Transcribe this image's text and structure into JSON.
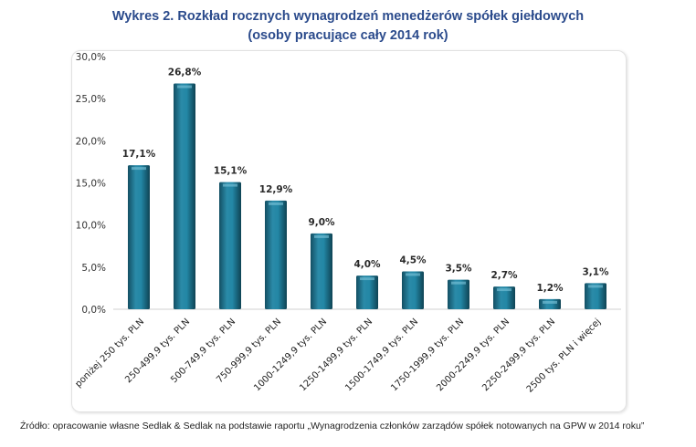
{
  "title_line1": "Wykres 2. Rozkład rocznych wynagrodzeń menedżerów spółek giełdowych",
  "title_line2": "(osoby pracujące cały 2014 rok)",
  "source": "Źródło: opracowanie własne Sedlak & Sedlak na podstawie raportu „Wynagrodzenia członków zarządów spółek notowanych na GPW w 2014 roku”",
  "chart_data": {
    "type": "bar",
    "title": "Wykres 2. Rozkład rocznych wynagrodzeń menedżerów spółek giełdowych (osoby pracujące cały 2014 rok)",
    "categories": [
      "poniżej 250 tys. PLN",
      "250-499,9 tys. PLN",
      "500-749,9 tys. PLN",
      "750-999,9 tys. PLN",
      "1000-1249,9 tys. PLN",
      "1250-1499,9 tys. PLN",
      "1500-1749,9 tys. PLN",
      "1750-1999,9 tys. PLN",
      "2000-2249,9 tys. PLN",
      "2250-2499,9 tys. PLN",
      "2500 tys. PLN i więcej"
    ],
    "values": [
      17.1,
      26.8,
      15.1,
      12.9,
      9.0,
      4.0,
      4.5,
      3.5,
      2.7,
      1.2,
      3.1
    ],
    "value_labels": [
      "17,1%",
      "26,8%",
      "15,1%",
      "12,9%",
      "9,0%",
      "4,0%",
      "4,5%",
      "3,5%",
      "2,7%",
      "1,2%",
      "3,1%"
    ],
    "yticks": [
      "0,0%",
      "5,0%",
      "10,0%",
      "15,0%",
      "20,0%",
      "25,0%",
      "30,0%"
    ],
    "ylim": [
      0,
      30
    ],
    "xlabel": "",
    "ylabel": "",
    "grid": false,
    "bar_color": "#1f7a96"
  }
}
